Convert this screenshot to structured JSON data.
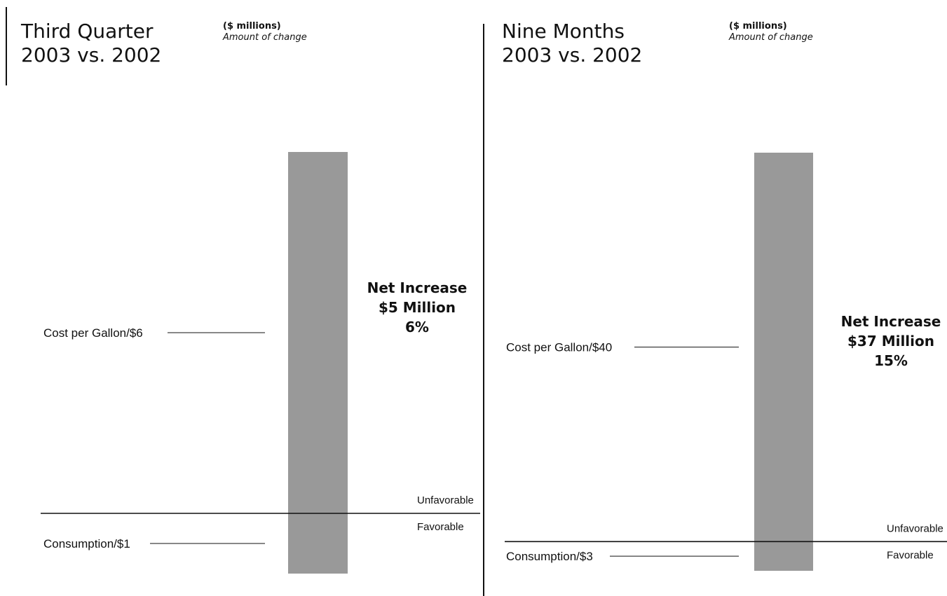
{
  "colors": {
    "bar": "#999999",
    "line": "#111111",
    "text": "#111111"
  },
  "chart_data": [
    {
      "type": "bar",
      "title": "Third Quarter",
      "subtitle": "2003 vs. 2002",
      "units": "($ millions)",
      "units_note": "Amount of change",
      "components": [
        {
          "label": "Cost per Gallon/$6",
          "value": 6,
          "direction": "unfavorable"
        },
        {
          "label": "Consumption/$1",
          "value": -1,
          "direction": "favorable"
        }
      ],
      "bar": {
        "top": 6,
        "bottom": -1
      },
      "baseline": 0,
      "region_labels": {
        "above": "Unfavorable",
        "below": "Favorable"
      },
      "net": {
        "line1": "Net Increase",
        "line2": "$5 Million",
        "line3": "6%",
        "value": 5,
        "percent": 6
      }
    },
    {
      "type": "bar",
      "title": "Nine Months",
      "subtitle": "2003 vs. 2002",
      "units": "($ millions)",
      "units_note": "Amount of change",
      "components": [
        {
          "label": "Cost per Gallon/$40",
          "value": 40,
          "direction": "unfavorable"
        },
        {
          "label": "Consumption/$3",
          "value": -3,
          "direction": "favorable"
        }
      ],
      "bar": {
        "top": 40,
        "bottom": -3
      },
      "baseline": 0,
      "region_labels": {
        "above": "Unfavorable",
        "below": "Favorable"
      },
      "net": {
        "line1": "Net Increase",
        "line2": "$37 Million",
        "line3": "15%",
        "value": 37,
        "percent": 15
      }
    }
  ]
}
